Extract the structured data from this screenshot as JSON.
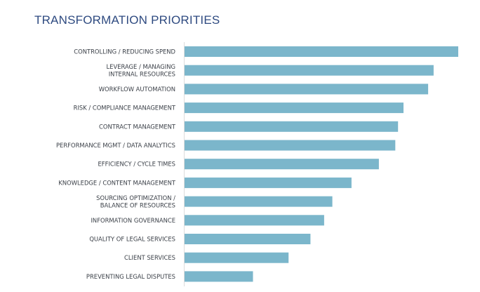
{
  "chart_data": {
    "type": "bar",
    "orientation": "horizontal",
    "title": "TRANSFORMATION PRIORITIES",
    "xlabel": "",
    "ylabel": "",
    "xlim": [
      0,
      100
    ],
    "grid": false,
    "colors": {
      "bar": "#7bb6cb",
      "title": "#2e4a80",
      "label": "#3b4048"
    },
    "categories": [
      [
        "CONTROLLING / REDUCING SPEND"
      ],
      [
        "LEVERAGE / MANAGING",
        "INTERNAL RESOURCES"
      ],
      [
        "WORKFLOW AUTOMATION"
      ],
      [
        "RISK / COMPLIANCE MANAGEMENT"
      ],
      [
        "CONTRACT MANAGEMENT"
      ],
      [
        "PERFORMANCE MGMT / DATA ANALYTICS"
      ],
      [
        "EFFICIENCY / CYCLE TIMES"
      ],
      [
        "KNOWLEDGE / CONTENT MANAGEMENT"
      ],
      [
        "SOURCING OPTIMIZATION /",
        "BALANCE OF RESOURCES"
      ],
      [
        "INFORMATION GOVERNANCE"
      ],
      [
        "QUALITY OF LEGAL SERVICES"
      ],
      [
        "CLIENT SERVICES"
      ],
      [
        "PREVENTING LEGAL DISPUTES"
      ]
    ],
    "values": [
      100,
      91,
      89,
      80,
      78,
      77,
      71,
      61,
      54,
      51,
      46,
      38,
      25
    ]
  }
}
